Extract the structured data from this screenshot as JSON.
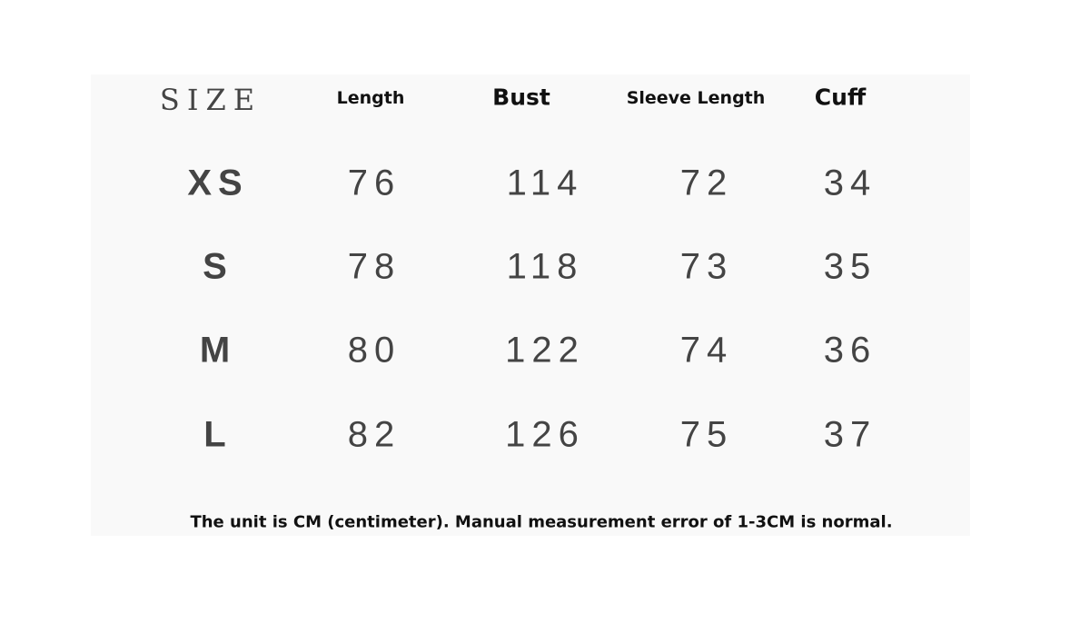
{
  "headers": [
    "SIZE",
    "Length",
    "Bust",
    "Sleeve Length",
    "Cuff"
  ],
  "rows": [
    {
      "size": "XS",
      "length": "76",
      "bust": "114",
      "sleeve": "72",
      "cuff": "34"
    },
    {
      "size": "S",
      "length": "78",
      "bust": "118",
      "sleeve": "73",
      "cuff": "35"
    },
    {
      "size": "M",
      "length": "80",
      "bust": "122",
      "sleeve": "74",
      "cuff": "36"
    },
    {
      "size": "L",
      "length": "82",
      "bust": "126",
      "sleeve": "75",
      "cuff": "37"
    }
  ],
  "note": "The unit is CM (centimeter). Manual measurement error of 1-3CM is normal."
}
